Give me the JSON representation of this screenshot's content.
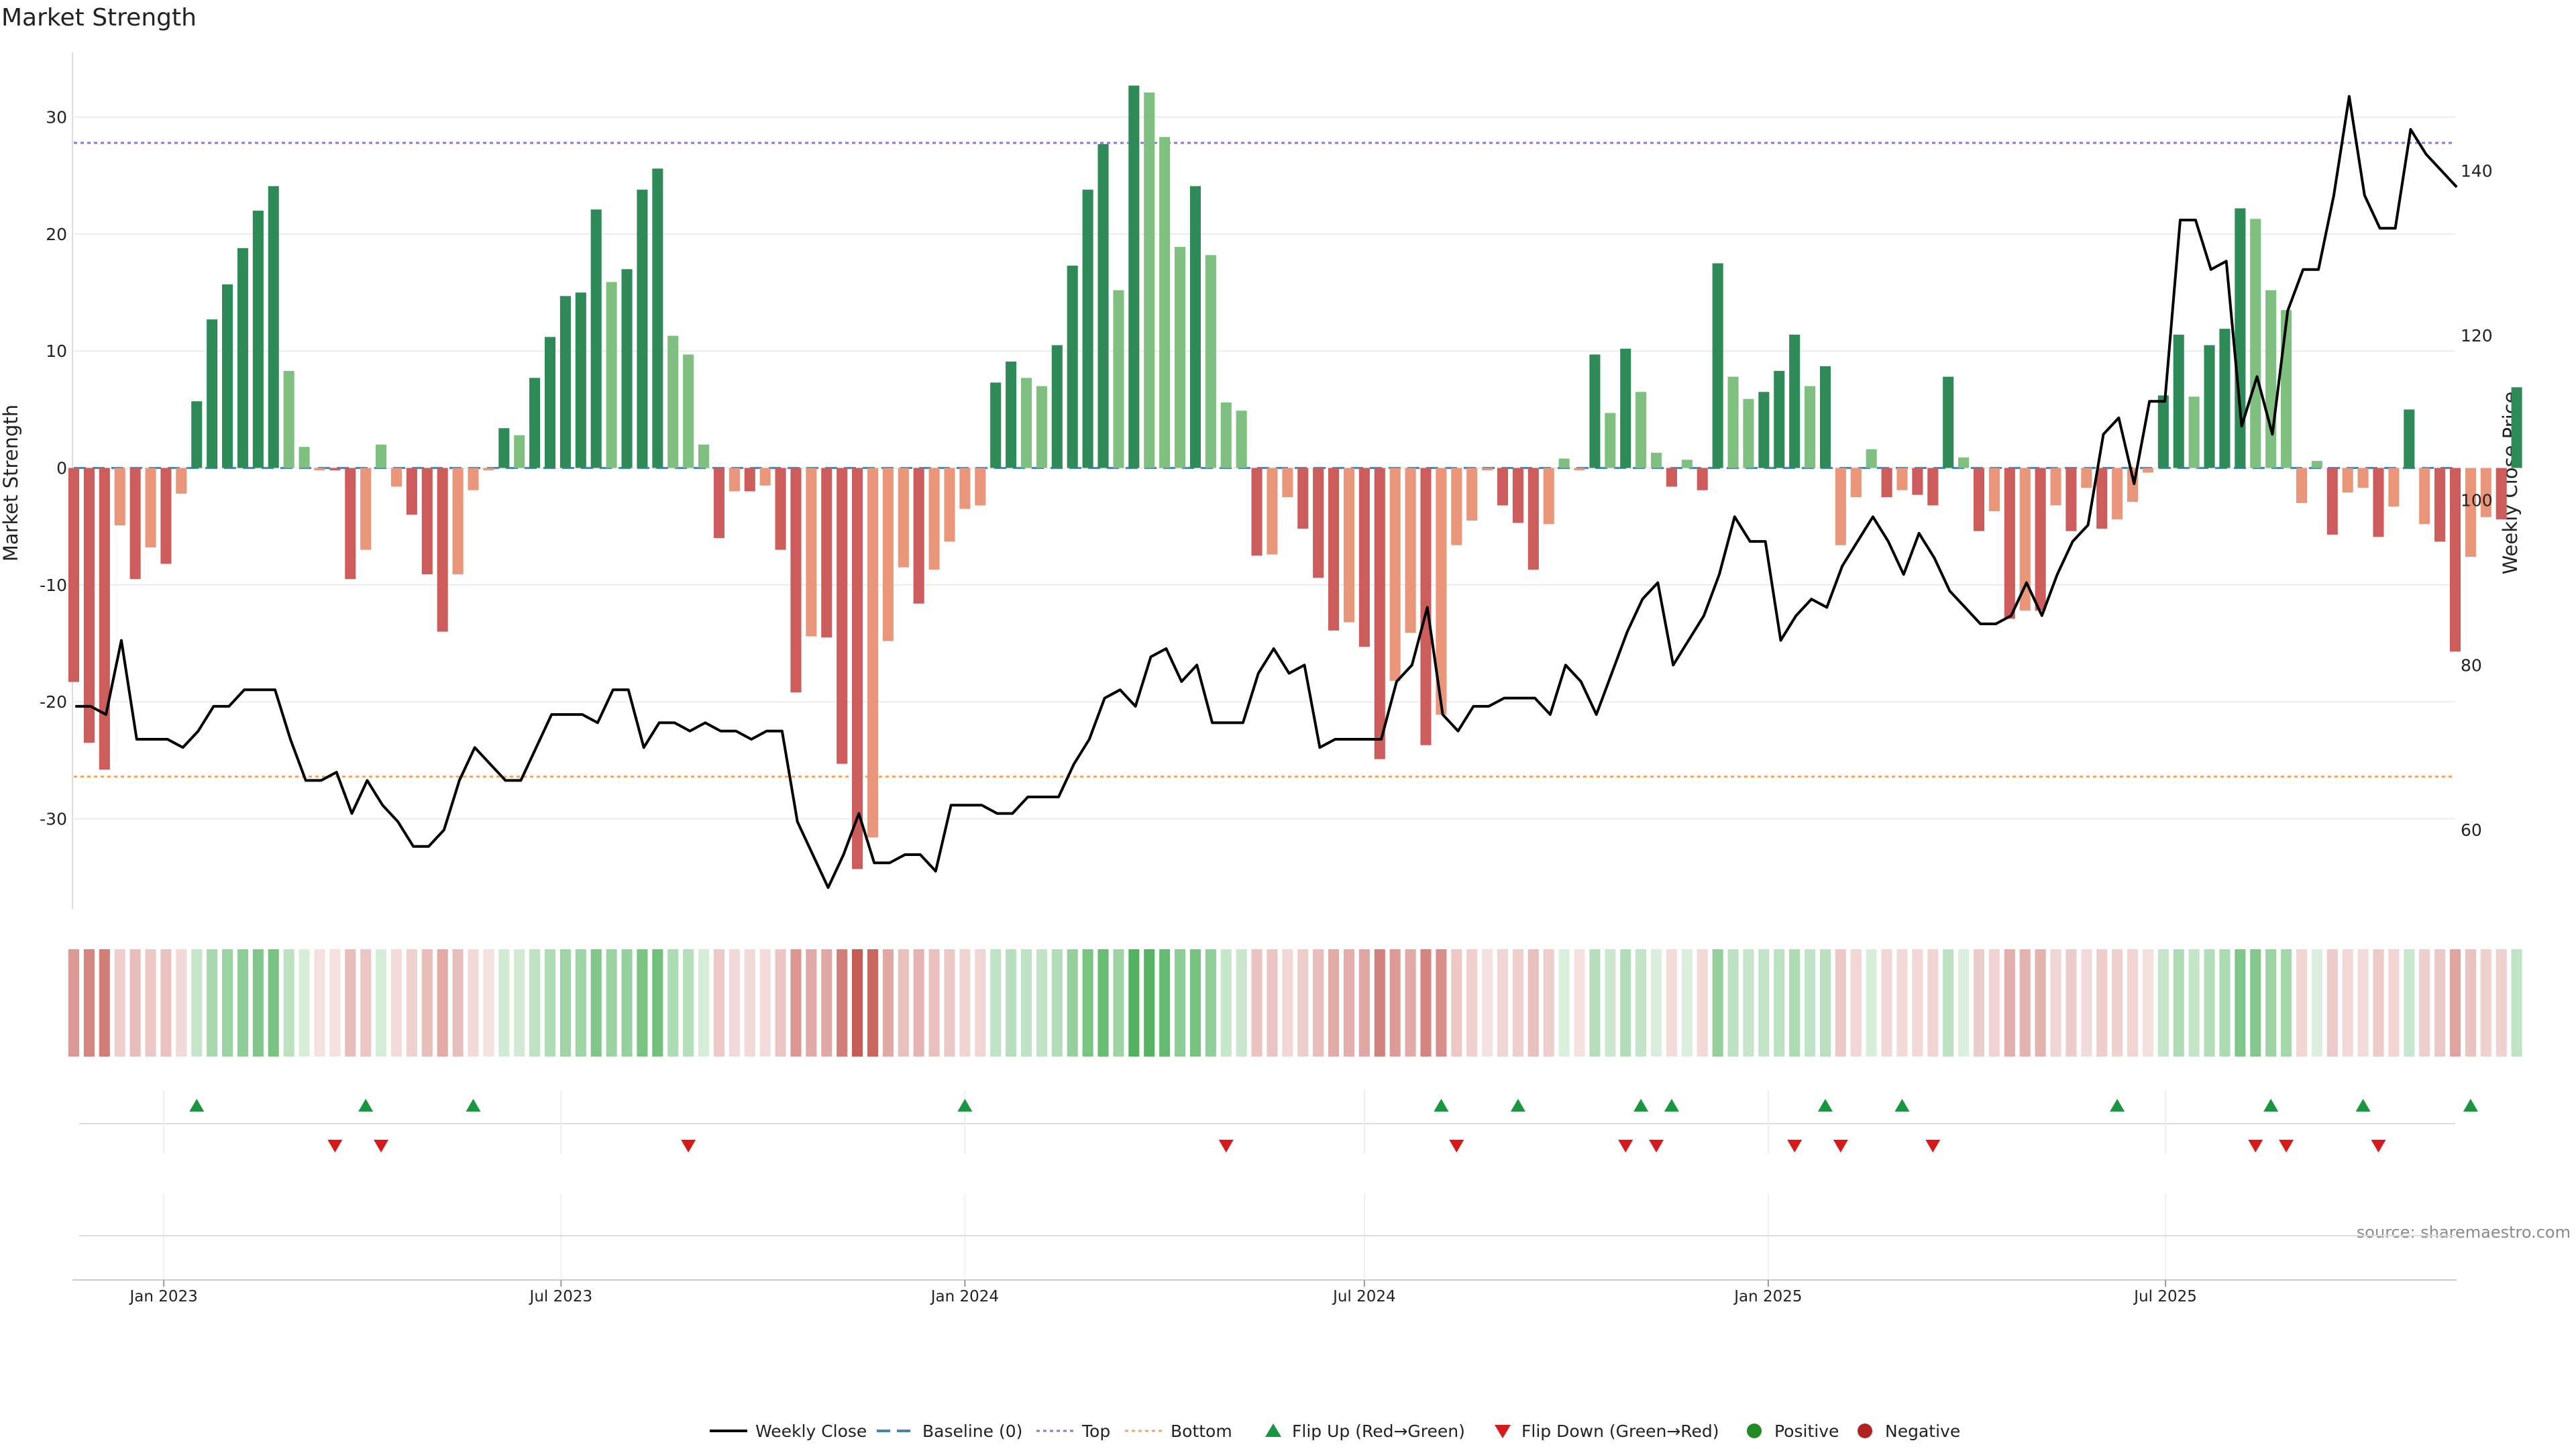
{
  "colors": {
    "pos_dark": "#2e8b57",
    "pos_light": "#7fbf7f",
    "neg_dark": "#cd5c5c",
    "neg_light": "#e9967a",
    "price_line": "#000000",
    "baseline": "#4682b4",
    "top_line": "#9370db",
    "bottom_line": "#f4a460",
    "flip_up": "#1a9641",
    "flip_down": "#d7191c",
    "positive": "#228b22",
    "negative": "#b22222"
  },
  "chart_data": {
    "type": "bar",
    "title": "Market Strength",
    "ylabel_left": "Market Strength",
    "ylabel_right": "Weekly Close Price",
    "source_note": "source: sharemaestro.com",
    "y_left": {
      "range": [
        -38,
        36
      ],
      "ticks": [
        30,
        20,
        10,
        0,
        -10,
        -20,
        -30
      ]
    },
    "y_right": {
      "range": [
        50,
        155
      ],
      "ticks": [
        140,
        120,
        100,
        80,
        60
      ]
    },
    "x_axis": {
      "start": "2022-11-21",
      "end": "2025-11-10",
      "ticks": [
        {
          "label": "Jan 2023",
          "date": "2023-01-01"
        },
        {
          "label": "Jul 2023",
          "date": "2023-07-01"
        },
        {
          "label": "Jan 2024",
          "date": "2024-01-01"
        },
        {
          "label": "Jul 2024",
          "date": "2024-07-01"
        },
        {
          "label": "Jan 2025",
          "date": "2025-01-01"
        },
        {
          "label": "Jul 2025",
          "date": "2025-07-01"
        }
      ]
    },
    "reference_lines": {
      "top": 27.8,
      "bottom": -26.4,
      "baseline": 0
    },
    "series": [
      {
        "name": "Weekly Close",
        "type": "line",
        "values": [
          75,
          75,
          74,
          83,
          71,
          71,
          71,
          70,
          72,
          75,
          75,
          77,
          77,
          77,
          71,
          66,
          66,
          67,
          62,
          66,
          63,
          61,
          58,
          58,
          60,
          66,
          70,
          68,
          66,
          66,
          70,
          74,
          74,
          74,
          73,
          77,
          77,
          70,
          73,
          73,
          72,
          73,
          72,
          72,
          71,
          72,
          72,
          61,
          57,
          53,
          57,
          62,
          56,
          56,
          57,
          57,
          55,
          63,
          63,
          63,
          62,
          62,
          64,
          64,
          64,
          68,
          71,
          76,
          77,
          75,
          81,
          82,
          78,
          80,
          73,
          73,
          73,
          79,
          82,
          79,
          80,
          70,
          71,
          71,
          71,
          71,
          78,
          80,
          87,
          74,
          72,
          75,
          75,
          76,
          76,
          76,
          74,
          80,
          78,
          74,
          79,
          84,
          88,
          90,
          80,
          83,
          86,
          91,
          98,
          95,
          95,
          83,
          86,
          88,
          87,
          92,
          95,
          98,
          95,
          91,
          96,
          93,
          89,
          87,
          85,
          85,
          86,
          90,
          86,
          91,
          95,
          97,
          108,
          110,
          102,
          112,
          112,
          134,
          134,
          128,
          129,
          109,
          115,
          108,
          123,
          128,
          128,
          137,
          149,
          137,
          133,
          133,
          145,
          142,
          140,
          138
        ]
      },
      {
        "name": "Market Strength",
        "type": "bar",
        "values": [
          -18.3,
          -23.5,
          -25.8,
          -4.9,
          -9.5,
          -6.8,
          -8.2,
          -2.2,
          5.7,
          12.7,
          15.7,
          18.8,
          22,
          24.1,
          8.3,
          1.8,
          -0.2,
          -0.2,
          -9.5,
          -7,
          2,
          -1.6,
          -4,
          -9.1,
          -14,
          -9.1,
          -1.9,
          -0.2,
          3.4,
          2.8,
          7.7,
          11.2,
          14.7,
          15,
          22.1,
          15.9,
          17,
          23.8,
          25.6,
          11.3,
          9.7,
          2,
          -6,
          -2,
          -2,
          -1.5,
          -7,
          -19.2,
          -14.4,
          -14.5,
          -25.3,
          -34.3,
          -31.6,
          -14.8,
          -8.5,
          -11.6,
          -8.7,
          -6.3,
          -3.5,
          -3.2,
          7.3,
          9.1,
          7.7,
          7,
          10.5,
          17.3,
          23.8,
          27.7,
          15.2,
          32.7,
          32.1,
          28.3,
          18.9,
          24.1,
          18.2,
          5.6,
          4.9,
          -7.5,
          -7.4,
          -2.5,
          -5.2,
          -9.4,
          -13.9,
          -13.2,
          -15.3,
          -24.9,
          -18.2,
          -14.1,
          -23.7,
          -21.1,
          -6.6,
          -4.5,
          -0.2,
          -3.2,
          -4.7,
          -8.7,
          -4.8,
          0.8,
          -0.2,
          9.7,
          4.7,
          10.2,
          6.5,
          1.3,
          -1.6,
          0.7,
          -1.9,
          17.5,
          7.8,
          5.9,
          6.5,
          8.3,
          11.4,
          7,
          8.7,
          -6.6,
          -2.5,
          1.6,
          -2.5,
          -1.9,
          -2.3,
          -3.2,
          7.8,
          0.9,
          -5.4,
          -3.7,
          -12.9,
          -12.2,
          -12.2,
          -3.2,
          -5.4,
          -1.7,
          -5.2,
          -4.4,
          -2.9,
          -0.4,
          6.2,
          11.4,
          6.1,
          10.5,
          11.9,
          22.2,
          21.3,
          15.2,
          13.5,
          -3,
          0.6,
          -5.7,
          -2.1,
          -1.7,
          -5.9,
          -3.3,
          5,
          -4.8,
          -6.3,
          -15.7,
          -7.6,
          -4.2,
          -4.4,
          6.9
        ]
      }
    ],
    "heatmap_strip": "Market Strength by week",
    "flips": {
      "up_weeks": [
        8,
        19,
        26,
        58,
        89,
        94,
        102,
        104,
        114,
        119,
        133,
        143,
        149,
        156
      ],
      "down_weeks": [
        17,
        20,
        40,
        75,
        90,
        101,
        103,
        112,
        115,
        121,
        142,
        144,
        150
      ]
    },
    "legend": [
      {
        "label": "Weekly Close",
        "kind": "line"
      },
      {
        "label": "Baseline (0)",
        "kind": "dash"
      },
      {
        "label": "Top",
        "kind": "dot"
      },
      {
        "label": "Bottom",
        "kind": "dot"
      },
      {
        "label": "Flip Up (Red→Green)",
        "kind": "tri-up"
      },
      {
        "label": "Flip Down (Green→Red)",
        "kind": "tri-down"
      },
      {
        "label": "Positive",
        "kind": "circle"
      },
      {
        "label": "Negative",
        "kind": "circle"
      }
    ]
  }
}
